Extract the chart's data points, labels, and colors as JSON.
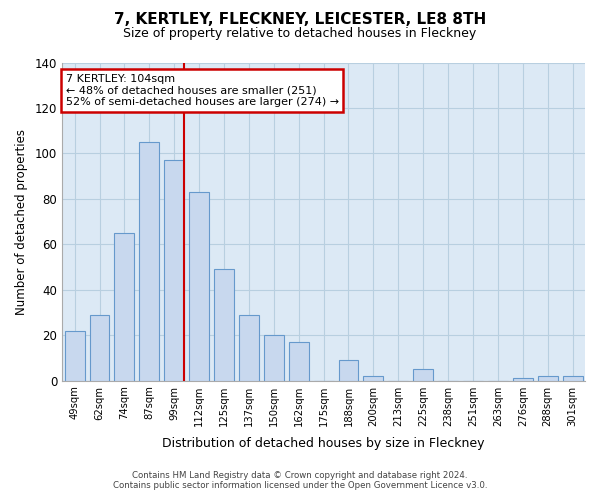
{
  "title": "7, KERTLEY, FLECKNEY, LEICESTER, LE8 8TH",
  "subtitle": "Size of property relative to detached houses in Fleckney",
  "xlabel": "Distribution of detached houses by size in Fleckney",
  "ylabel": "Number of detached properties",
  "bar_labels": [
    "49sqm",
    "62sqm",
    "74sqm",
    "87sqm",
    "99sqm",
    "112sqm",
    "125sqm",
    "137sqm",
    "150sqm",
    "162sqm",
    "175sqm",
    "188sqm",
    "200sqm",
    "213sqm",
    "225sqm",
    "238sqm",
    "251sqm",
    "263sqm",
    "276sqm",
    "288sqm",
    "301sqm"
  ],
  "bar_values": [
    22,
    29,
    65,
    105,
    97,
    83,
    49,
    29,
    20,
    17,
    0,
    9,
    2,
    0,
    5,
    0,
    0,
    0,
    1,
    2,
    2
  ],
  "bar_color": "#c8d8ee",
  "bar_edge_color": "#6699cc",
  "annotation_title": "7 KERTLEY: 104sqm",
  "annotation_line1": "← 48% of detached houses are smaller (251)",
  "annotation_line2": "52% of semi-detached houses are larger (274) →",
  "annotation_box_color": "#ffffff",
  "annotation_border_color": "#cc0000",
  "vline_color": "#cc0000",
  "ylim": [
    0,
    140
  ],
  "yticks": [
    0,
    20,
    40,
    60,
    80,
    100,
    120,
    140
  ],
  "footer1": "Contains HM Land Registry data © Crown copyright and database right 2024.",
  "footer2": "Contains public sector information licensed under the Open Government Licence v3.0.",
  "plot_bg_color": "#dce9f5",
  "fig_bg_color": "#ffffff",
  "grid_color": "#b8cfe0"
}
